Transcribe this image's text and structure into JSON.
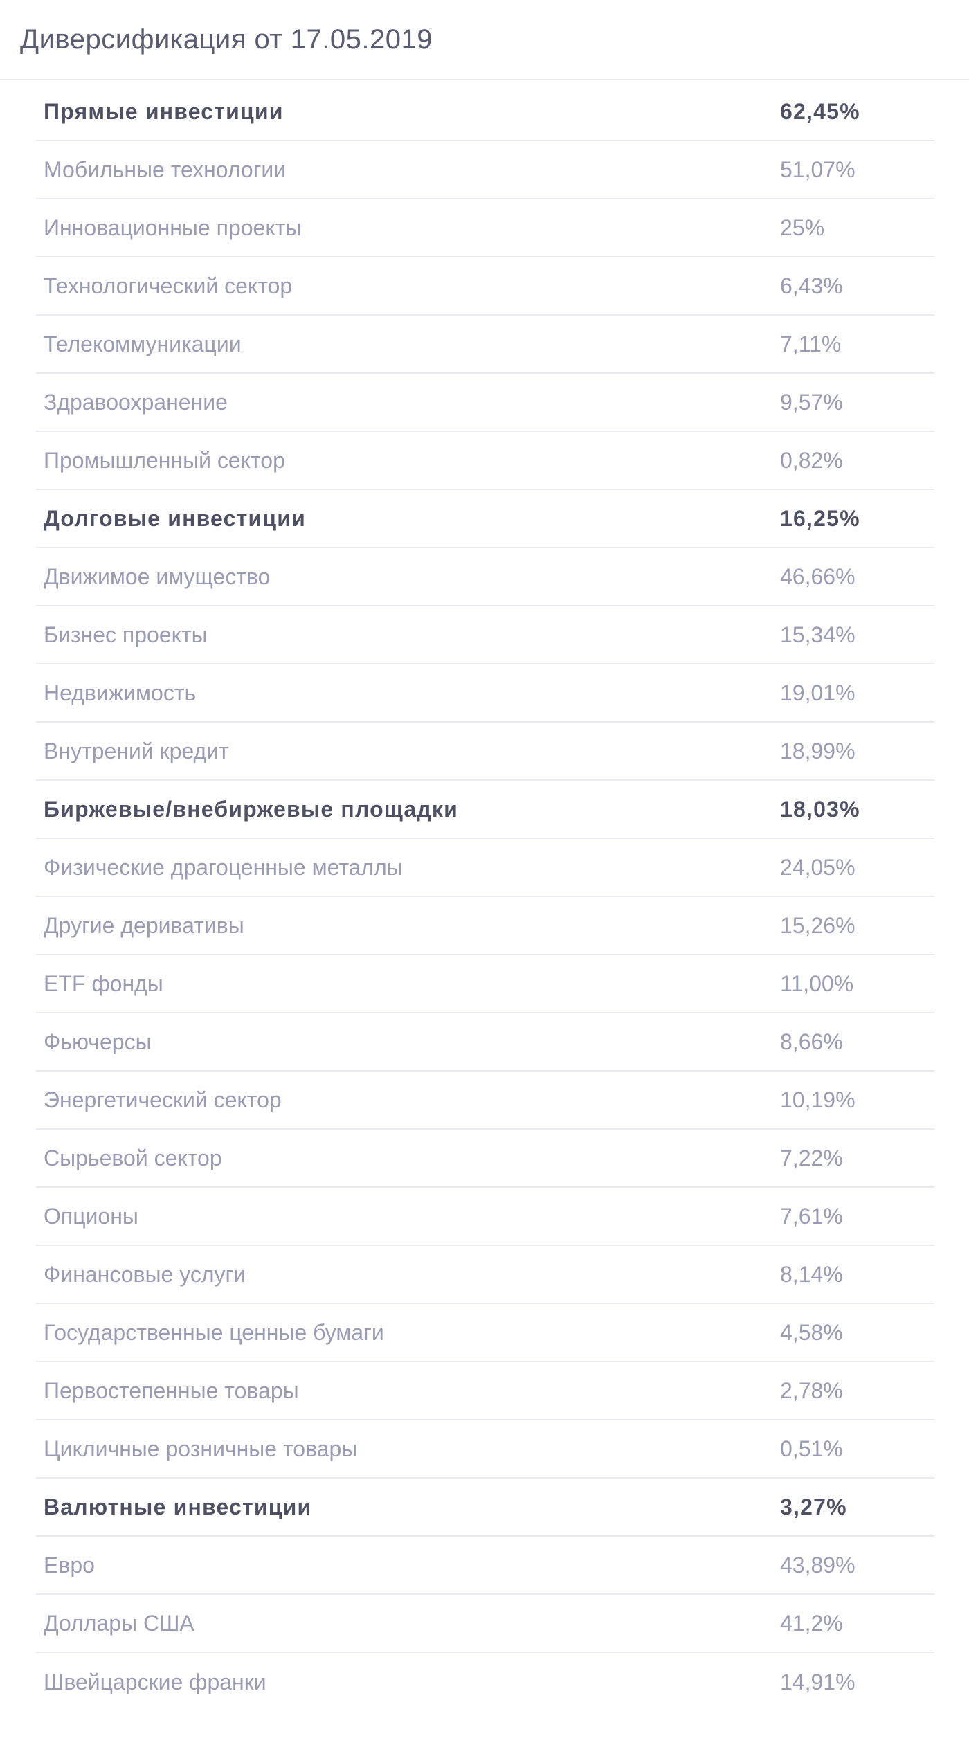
{
  "header": {
    "title": "Диверсификация от 17.05.2019"
  },
  "rows": [
    {
      "label": "Прямые инвестиции",
      "value": "62,45%",
      "category": true
    },
    {
      "label": "Мобильные технологии",
      "value": "51,07%"
    },
    {
      "label": "Инновационные проекты",
      "value": "25%"
    },
    {
      "label": "Технологический сектор",
      "value": "6,43%"
    },
    {
      "label": "Телекоммуникации",
      "value": "7,11%"
    },
    {
      "label": "Здравоохранение",
      "value": "9,57%"
    },
    {
      "label": "Промышленный сектор",
      "value": "0,82%"
    },
    {
      "label": "Долговые инвестиции",
      "value": "16,25%",
      "category": true
    },
    {
      "label": "Движимое имущество",
      "value": "46,66%"
    },
    {
      "label": "Бизнес проекты",
      "value": "15,34%"
    },
    {
      "label": "Недвижимость",
      "value": "19,01%"
    },
    {
      "label": "Внутрений кредит",
      "value": "18,99%"
    },
    {
      "label": "Биржевые/внебиржевые площадки",
      "value": "18,03%",
      "category": true
    },
    {
      "label": "Физические драгоценные металлы",
      "value": "24,05%"
    },
    {
      "label": "Другие деривативы",
      "value": "15,26%"
    },
    {
      "label": "ETF фонды",
      "value": "11,00%"
    },
    {
      "label": "Фьючерсы",
      "value": "8,66%"
    },
    {
      "label": "Энергетический сектор",
      "value": "10,19%"
    },
    {
      "label": "Сырьевой сектор",
      "value": "7,22%"
    },
    {
      "label": "Опционы",
      "value": "7,61%"
    },
    {
      "label": "Финансовые услуги",
      "value": "8,14%"
    },
    {
      "label": "Государственные ценные бумаги",
      "value": "4,58%"
    },
    {
      "label": "Первостепенные товары",
      "value": "2,78%"
    },
    {
      "label": "Цикличные розничные товары",
      "value": "0,51%"
    },
    {
      "label": "Валютные инвестиции",
      "value": "3,27%",
      "category": true
    },
    {
      "label": "Евро",
      "value": "43,89%"
    },
    {
      "label": "Доллары США",
      "value": "41,2%"
    },
    {
      "label": "Швейцарские франки",
      "value": "14,91%"
    }
  ]
}
